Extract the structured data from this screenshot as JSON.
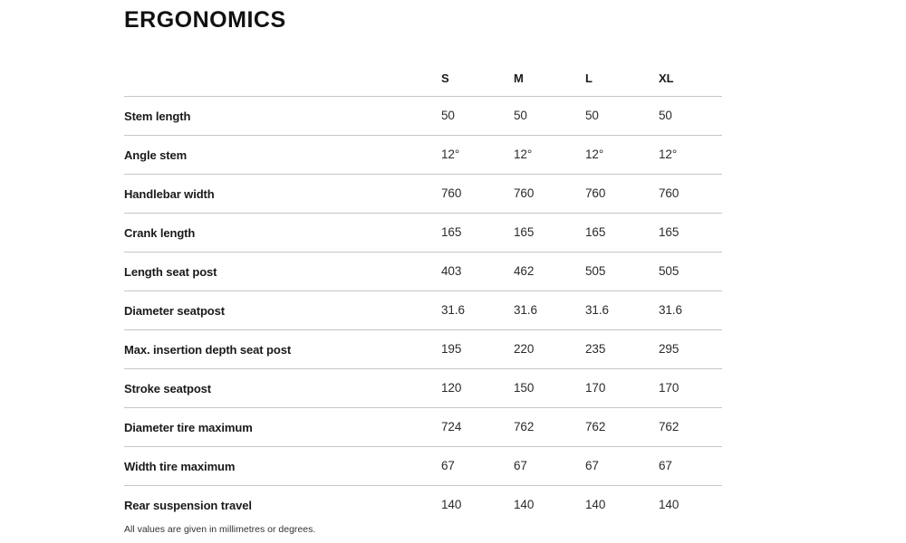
{
  "page": {
    "title": "ERGONOMICS",
    "footnote": "All values are given in millimetres or degrees."
  },
  "colors": {
    "text": "#1a1a1a",
    "divider": "#c6c6c6",
    "background": "#ffffff"
  },
  "table": {
    "columns": [
      "S",
      "M",
      "L",
      "XL"
    ],
    "rows": [
      {
        "label": "Stem length",
        "values": [
          "50",
          "50",
          "50",
          "50"
        ]
      },
      {
        "label": "Angle stem",
        "values": [
          "12°",
          "12°",
          "12°",
          "12°"
        ]
      },
      {
        "label": "Handlebar width",
        "values": [
          "760",
          "760",
          "760",
          "760"
        ]
      },
      {
        "label": "Crank length",
        "values": [
          "165",
          "165",
          "165",
          "165"
        ]
      },
      {
        "label": "Length seat post",
        "values": [
          "403",
          "462",
          "505",
          "505"
        ]
      },
      {
        "label": "Diameter seatpost",
        "values": [
          "31.6",
          "31.6",
          "31.6",
          "31.6"
        ]
      },
      {
        "label": "Max. insertion depth seat post",
        "values": [
          "195",
          "220",
          "235",
          "295"
        ]
      },
      {
        "label": "Stroke seatpost",
        "values": [
          "120",
          "150",
          "170",
          "170"
        ]
      },
      {
        "label": "Diameter tire maximum",
        "values": [
          "724",
          "762",
          "762",
          "762"
        ]
      },
      {
        "label": "Width tire maximum",
        "values": [
          "67",
          "67",
          "67",
          "67"
        ]
      },
      {
        "label": "Rear suspension travel",
        "values": [
          "140",
          "140",
          "140",
          "140"
        ]
      }
    ]
  }
}
